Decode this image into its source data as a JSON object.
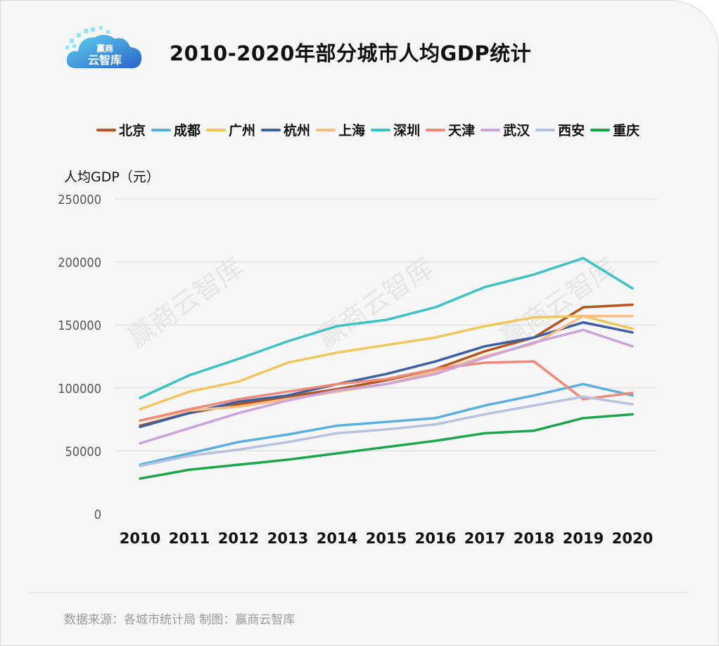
{
  "header": {
    "title": "2010-2020年部分城市人均GDP统计",
    "logo_text_1": "赢商",
    "logo_text_2": "云智库"
  },
  "watermark": "赢商云智库",
  "footer": {
    "source": "数据来源：各城市统计局   制图：赢商云智库"
  },
  "chart_data": {
    "type": "line",
    "title": "2010-2020年部分城市人均GDP统计",
    "ylabel": "人均GDP（元）",
    "xlabel": "",
    "x": [
      "2010",
      "2011",
      "2012",
      "2013",
      "2014",
      "2015",
      "2016",
      "2017",
      "2018",
      "2019",
      "2020"
    ],
    "ylim": [
      0,
      250000
    ],
    "yticks": [
      "0",
      "50000",
      "100000",
      "150000",
      "200000",
      "250000"
    ],
    "grid": true,
    "legend_position": "top",
    "series": [
      {
        "name": "北京",
        "color": "#b5561f",
        "values": [
          70000,
          80000,
          87000,
          93000,
          99000,
          106000,
          115000,
          129000,
          140000,
          164000,
          166000
        ]
      },
      {
        "name": "成都",
        "color": "#5aaee0",
        "values": [
          39000,
          48000,
          57000,
          63000,
          70000,
          73000,
          76000,
          86000,
          94000,
          103000,
          94000
        ]
      },
      {
        "name": "广州",
        "color": "#f0c75e",
        "values": [
          83000,
          97000,
          105000,
          120000,
          128000,
          134000,
          140000,
          149000,
          156000,
          157000,
          147000
        ]
      },
      {
        "name": "杭州",
        "color": "#3d5fa3",
        "values": [
          69000,
          80000,
          89000,
          94000,
          103000,
          111000,
          121000,
          133000,
          140000,
          152000,
          144000
        ]
      },
      {
        "name": "上海",
        "color": "#f9bd86",
        "values": [
          74000,
          82000,
          85000,
          91000,
          97000,
          103000,
          113000,
          125000,
          135000,
          157000,
          157000
        ]
      },
      {
        "name": "深圳",
        "color": "#3fc2c4",
        "values": [
          92000,
          110000,
          123000,
          137000,
          149000,
          154000,
          164000,
          180000,
          190000,
          203000,
          179000
        ]
      },
      {
        "name": "天津",
        "color": "#ef8a78",
        "values": [
          74000,
          83000,
          91000,
          97000,
          103000,
          107000,
          115000,
          120000,
          121000,
          91000,
          96000
        ]
      },
      {
        "name": "武汉",
        "color": "#c9a3d9",
        "values": [
          56000,
          68000,
          80000,
          90000,
          98000,
          103000,
          111000,
          124000,
          136000,
          146000,
          133000
        ]
      },
      {
        "name": "西安",
        "color": "#b8c1de",
        "values": [
          38000,
          46000,
          51000,
          57000,
          64000,
          67000,
          71000,
          79000,
          86000,
          93000,
          87000
        ]
      },
      {
        "name": "重庆",
        "color": "#1da54c",
        "values": [
          28000,
          35000,
          39000,
          43000,
          48000,
          53000,
          58000,
          64000,
          66000,
          76000,
          79000
        ]
      }
    ]
  }
}
